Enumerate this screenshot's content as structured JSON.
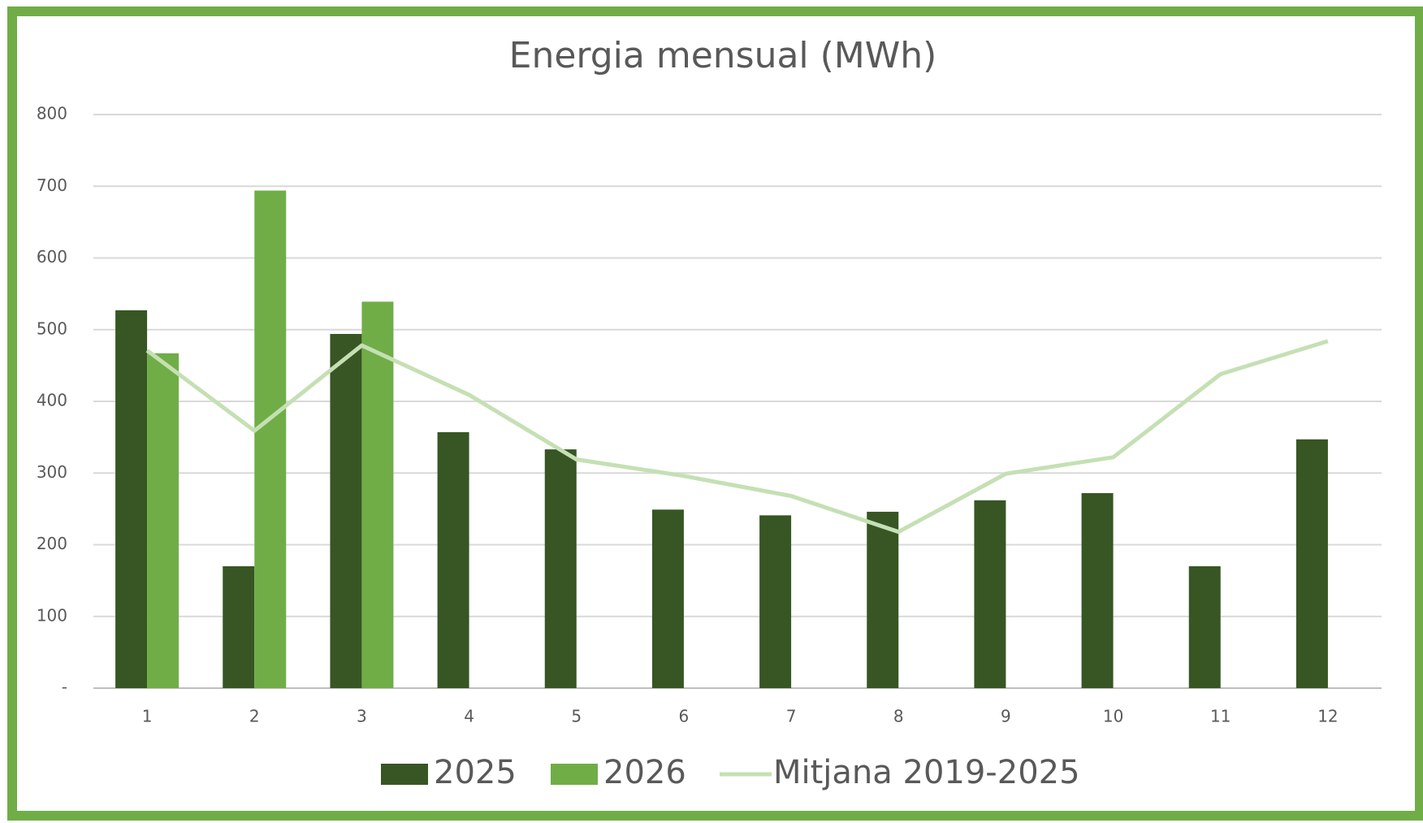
{
  "chart_data": {
    "type": "bar",
    "title": "Energia mensual (MWh)",
    "categories": [
      "1",
      "2",
      "3",
      "4",
      "5",
      "6",
      "7",
      "8",
      "9",
      "10",
      "11",
      "12"
    ],
    "series": [
      {
        "name": "2025",
        "type": "bar",
        "color": "#375623",
        "values": [
          527,
          170,
          494,
          357,
          333,
          249,
          241,
          246,
          262,
          272,
          170,
          347
        ]
      },
      {
        "name": "2026",
        "type": "bar",
        "color": "#70ad47",
        "values": [
          467,
          694,
          539,
          null,
          null,
          null,
          null,
          null,
          null,
          null,
          null,
          null
        ]
      },
      {
        "name": "Mitjana 2019-2025",
        "type": "line",
        "color": "#c5e0b4",
        "values": [
          471,
          359,
          478,
          409,
          319,
          296,
          268,
          218,
          299,
          322,
          438,
          484
        ]
      }
    ],
    "ylim": [
      0,
      800
    ],
    "yticks": [
      {
        "value": 0,
        "label": "-"
      },
      100,
      200,
      300,
      400,
      500,
      600,
      700,
      800
    ],
    "grid": true,
    "legend": "bottom"
  }
}
